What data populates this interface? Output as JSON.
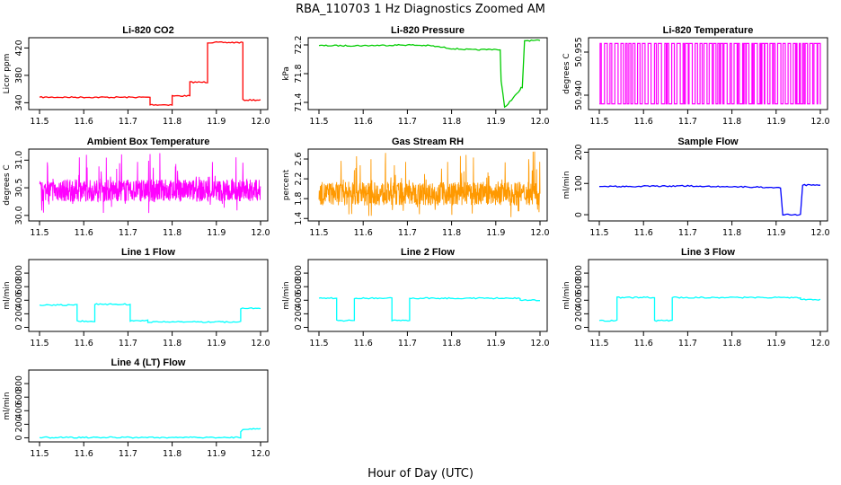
{
  "figure": {
    "title": "RBA_110703  1 Hz Diagnostics Zoomed AM",
    "xlabel": "Hour of Day (UTC)"
  },
  "chart_data": [
    {
      "type": "line",
      "title": "Li-820 CO2",
      "ylabel": "Licor ppm",
      "color": "#ff0000",
      "xlim": [
        11.5,
        12.0
      ],
      "xticks": [
        "11.5",
        "11.6",
        "11.7",
        "11.8",
        "11.9",
        "12.0"
      ],
      "ylim": [
        330,
        435
      ],
      "yticks": [
        "340",
        "380",
        "420"
      ],
      "ytick_values": [
        340,
        380,
        420
      ],
      "series": [
        {
          "x": [
            11.5,
            11.75,
            11.75,
            11.8,
            11.8,
            11.84,
            11.84,
            11.88,
            11.88,
            11.96,
            11.96,
            12.0
          ],
          "y": [
            348,
            348,
            337,
            337,
            350,
            350,
            370,
            370,
            428,
            428,
            344,
            344
          ]
        }
      ]
    },
    {
      "type": "line",
      "title": "Li-820 Pressure",
      "ylabel": "kPa",
      "color": "#00cc00",
      "xlim": [
        11.5,
        12.0
      ],
      "xticks": [
        "11.5",
        "11.6",
        "11.7",
        "11.8",
        "11.9",
        "12.0"
      ],
      "ylim": [
        71.3,
        72.3
      ],
      "yticks": [
        "71.4",
        "71.8",
        "72.2"
      ],
      "ytick_values": [
        71.4,
        71.8,
        72.2
      ],
      "series": [
        {
          "x": [
            11.5,
            11.6,
            11.7,
            11.75,
            11.8,
            11.85,
            11.9,
            11.91,
            11.912,
            11.92,
            11.955,
            11.957,
            11.96,
            11.965,
            12.0
          ],
          "y": [
            72.19,
            72.19,
            72.2,
            72.19,
            72.15,
            72.13,
            72.14,
            72.13,
            71.7,
            71.33,
            71.57,
            71.6,
            71.6,
            72.26,
            72.26
          ]
        }
      ]
    },
    {
      "type": "line",
      "title": "Li-820 Temperature",
      "ylabel": "degrees C",
      "color": "#ff00ff",
      "xlim": [
        11.5,
        12.0
      ],
      "xticks": [
        "11.5",
        "11.6",
        "11.7",
        "11.8",
        "11.9",
        "12.0"
      ],
      "ylim": [
        50.935,
        50.96
      ],
      "yticks": [
        "50.940",
        "50.955"
      ],
      "ytick_values": [
        50.94,
        50.955
      ],
      "series": [
        {
          "x": [],
          "y": [],
          "note_values": [
            50.937,
            50.958
          ]
        }
      ]
    },
    {
      "type": "line",
      "title": "Ambient Box Temperature",
      "ylabel": "degrees C",
      "color": "#ff00ff",
      "xlim": [
        11.5,
        12.0
      ],
      "xticks": [
        "11.5",
        "11.6",
        "11.7",
        "11.8",
        "11.9",
        "12.0"
      ],
      "ylim": [
        29.9,
        31.2
      ],
      "yticks": [
        "30.0",
        "30.5",
        "31.0"
      ],
      "ytick_values": [
        30.0,
        30.5,
        31.0
      ],
      "series": [
        {
          "center": 30.45,
          "range": [
            30.0,
            31.15
          ]
        }
      ]
    },
    {
      "type": "line",
      "title": "Gas Stream RH",
      "ylabel": "percent",
      "color": "#ff9900",
      "xlim": [
        11.5,
        12.0
      ],
      "xticks": [
        "11.5",
        "11.6",
        "11.7",
        "11.8",
        "11.9",
        "12.0"
      ],
      "ylim": [
        1.35,
        2.8
      ],
      "yticks": [
        "1.4",
        "1.8",
        "2.2",
        "2.6"
      ],
      "ytick_values": [
        1.4,
        1.8,
        2.2,
        2.6
      ],
      "series": [
        {
          "center": 1.9,
          "range": [
            1.4,
            2.75
          ]
        }
      ]
    },
    {
      "type": "line",
      "title": "Sample Flow",
      "ylabel": "ml/min",
      "color": "#0000ff",
      "xlim": [
        11.5,
        12.0
      ],
      "xticks": [
        "11.5",
        "11.6",
        "11.7",
        "11.8",
        "11.9",
        "12.0"
      ],
      "ylim": [
        -20,
        210
      ],
      "yticks": [
        "0",
        "100",
        "200"
      ],
      "ytick_values": [
        0,
        100,
        200
      ],
      "series": [
        {
          "x": [
            11.5,
            11.7,
            11.91,
            11.915,
            11.955,
            11.96,
            12.0
          ],
          "y": [
            90,
            92,
            87,
            0,
            0,
            95,
            95
          ]
        }
      ]
    },
    {
      "type": "line",
      "title": "Line 1 Flow",
      "ylabel": "ml/min",
      "color": "#00ffff",
      "xlim": [
        11.5,
        12.0
      ],
      "xticks": [
        "11.5",
        "11.6",
        "11.7",
        "11.8",
        "11.9",
        "12.0"
      ],
      "ylim": [
        -60,
        1000
      ],
      "yticks": [
        "0",
        "200",
        "400",
        "600",
        "800"
      ],
      "ytick_values": [
        0,
        200,
        400,
        600,
        800
      ],
      "series": [
        {
          "x": [
            11.5,
            11.585,
            11.585,
            11.625,
            11.625,
            11.705,
            11.705,
            11.745,
            11.745,
            11.955,
            11.955,
            12.0
          ],
          "y": [
            330,
            330,
            90,
            90,
            340,
            340,
            100,
            100,
            80,
            80,
            280,
            280
          ]
        }
      ]
    },
    {
      "type": "line",
      "title": "Line 2 Flow",
      "ylabel": "ml/min",
      "color": "#00ffff",
      "xlim": [
        11.5,
        12.0
      ],
      "xticks": [
        "11.5",
        "11.6",
        "11.7",
        "11.8",
        "11.9",
        "12.0"
      ],
      "ylim": [
        -60,
        1000
      ],
      "yticks": [
        "0",
        "200",
        "400",
        "600",
        "800"
      ],
      "ytick_values": [
        0,
        200,
        400,
        600,
        800
      ],
      "series": [
        {
          "x": [
            11.5,
            11.54,
            11.54,
            11.58,
            11.58,
            11.665,
            11.665,
            11.705,
            11.705,
            11.955,
            11.955,
            12.0
          ],
          "y": [
            430,
            430,
            100,
            100,
            430,
            430,
            100,
            100,
            430,
            430,
            400,
            400
          ]
        }
      ]
    },
    {
      "type": "line",
      "title": "Line 3 Flow",
      "ylabel": "ml/min",
      "color": "#00ffff",
      "xlim": [
        11.5,
        12.0
      ],
      "xticks": [
        "11.5",
        "11.6",
        "11.7",
        "11.8",
        "11.9",
        "12.0"
      ],
      "ylim": [
        -60,
        1000
      ],
      "yticks": [
        "0",
        "200",
        "400",
        "600",
        "800"
      ],
      "ytick_values": [
        0,
        200,
        400,
        600,
        800
      ],
      "series": [
        {
          "x": [
            11.5,
            11.54,
            11.54,
            11.625,
            11.625,
            11.665,
            11.665,
            11.955,
            11.955,
            12.0
          ],
          "y": [
            100,
            100,
            440,
            440,
            100,
            100,
            440,
            440,
            410,
            410
          ]
        }
      ]
    },
    {
      "type": "line",
      "title": "Line 4 (LT) Flow",
      "ylabel": "ml/min",
      "color": "#00ffff",
      "xlim": [
        11.5,
        12.0
      ],
      "xticks": [
        "11.5",
        "11.6",
        "11.7",
        "11.8",
        "11.9",
        "12.0"
      ],
      "ylim": [
        -60,
        1000
      ],
      "yticks": [
        "0",
        "200",
        "400",
        "600",
        "800"
      ],
      "ytick_values": [
        0,
        200,
        400,
        600,
        800
      ],
      "series": [
        {
          "x": [
            11.5,
            11.955,
            11.955,
            11.96,
            12.0
          ],
          "y": [
            5,
            5,
            90,
            130,
            130
          ]
        }
      ]
    }
  ]
}
